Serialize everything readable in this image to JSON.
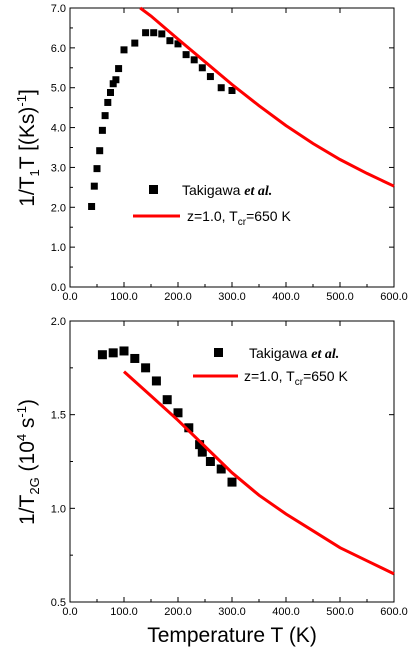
{
  "chart_data": [
    {
      "type": "scatter",
      "ylabel": "1/T₁T  [(Ks)⁻¹]",
      "xlabel": "",
      "xlim": [
        0,
        600
      ],
      "ylim": [
        0,
        7
      ],
      "xticks": [
        "0.0",
        "100.0",
        "200.0",
        "300.0",
        "400.0",
        "500.0",
        "600.0"
      ],
      "yticks": [
        "0.0",
        "1.0",
        "2.0",
        "3.0",
        "4.0",
        "5.0",
        "6.0",
        "7.0"
      ],
      "legend_position": "center-right",
      "series": [
        {
          "name": "Takigawa et al.",
          "kind": "markers",
          "color": "#000000",
          "points": [
            [
              40,
              2.02
            ],
            [
              45,
              2.53
            ],
            [
              50,
              2.97
            ],
            [
              55,
              3.42
            ],
            [
              60,
              3.93
            ],
            [
              65,
              4.3
            ],
            [
              70,
              4.63
            ],
            [
              75,
              4.88
            ],
            [
              80,
              5.1
            ],
            [
              85,
              5.2
            ],
            [
              90,
              5.48
            ],
            [
              100,
              5.95
            ],
            [
              120,
              6.12
            ],
            [
              140,
              6.38
            ],
            [
              155,
              6.38
            ],
            [
              170,
              6.35
            ],
            [
              185,
              6.18
            ],
            [
              200,
              6.1
            ],
            [
              215,
              5.83
            ],
            [
              230,
              5.7
            ],
            [
              245,
              5.5
            ],
            [
              260,
              5.28
            ],
            [
              280,
              5.0
            ],
            [
              300,
              4.93
            ]
          ]
        },
        {
          "name": "z=1.0, T_cr=650 K",
          "kind": "line",
          "color": "#ff0000",
          "points": [
            [
              130,
              7.0
            ],
            [
              150,
              6.8
            ],
            [
              200,
              6.22
            ],
            [
              250,
              5.65
            ],
            [
              300,
              5.08
            ],
            [
              350,
              4.55
            ],
            [
              400,
              4.05
            ],
            [
              450,
              3.6
            ],
            [
              500,
              3.2
            ],
            [
              550,
              2.85
            ],
            [
              600,
              2.53
            ]
          ]
        }
      ]
    },
    {
      "type": "scatter",
      "ylabel": "1/T_2G (10⁴ s⁻¹)",
      "xlabel": "Temperature T (K)",
      "xlim": [
        0,
        600
      ],
      "ylim": [
        0.5,
        2.0
      ],
      "xticks": [
        "0.0",
        "100.0",
        "200.0",
        "300.0",
        "400.0",
        "500.0",
        "600.0"
      ],
      "yticks": [
        "0.5",
        "1.0",
        "1.5",
        "2.0"
      ],
      "legend_position": "top-right",
      "series": [
        {
          "name": "Takigawa et al.",
          "kind": "markers",
          "color": "#000000",
          "points": [
            [
              60,
              1.82
            ],
            [
              80,
              1.83
            ],
            [
              100,
              1.84
            ],
            [
              120,
              1.8
            ],
            [
              140,
              1.75
            ],
            [
              160,
              1.68
            ],
            [
              180,
              1.58
            ],
            [
              200,
              1.51
            ],
            [
              220,
              1.43
            ],
            [
              240,
              1.34
            ],
            [
              245,
              1.3
            ],
            [
              260,
              1.25
            ],
            [
              280,
              1.21
            ],
            [
              300,
              1.14
            ]
          ]
        },
        {
          "name": "z=1.0, T_cr=650 K",
          "kind": "line",
          "color": "#ff0000",
          "points": [
            [
              100,
              1.73
            ],
            [
              150,
              1.6
            ],
            [
              200,
              1.47
            ],
            [
              250,
              1.33
            ],
            [
              300,
              1.19
            ],
            [
              350,
              1.07
            ],
            [
              400,
              0.97
            ],
            [
              450,
              0.88
            ],
            [
              500,
              0.79
            ],
            [
              550,
              0.72
            ],
            [
              600,
              0.65
            ]
          ]
        }
      ]
    }
  ],
  "legend": {
    "top_name_prefix": "Takigawa ",
    "top_name_suffix": "et al.",
    "top_line_prefix": "z=1.0, T",
    "top_line_sub": "cr",
    "top_line_suffix": "=650 K",
    "bottom_name_prefix": "Takigawa ",
    "bottom_name_suffix": "et al.",
    "bottom_line_prefix": "z=1.0, T",
    "bottom_line_sub": "cr",
    "bottom_line_suffix": "=650 K"
  },
  "axis_text": {
    "top_ylabel_a": "1/T",
    "top_ylabel_sub1": "1",
    "top_ylabel_b": "T  [(Ks)",
    "top_ylabel_sup": "-1",
    "top_ylabel_c": "]",
    "bottom_ylabel_a": "1/T",
    "bottom_ylabel_sub": "2G",
    "bottom_ylabel_b": " (10",
    "bottom_ylabel_sup1": "4",
    "bottom_ylabel_c": " s",
    "bottom_ylabel_sup2": "-1",
    "bottom_ylabel_d": ")",
    "xlabel": "Temperature T (K)"
  }
}
